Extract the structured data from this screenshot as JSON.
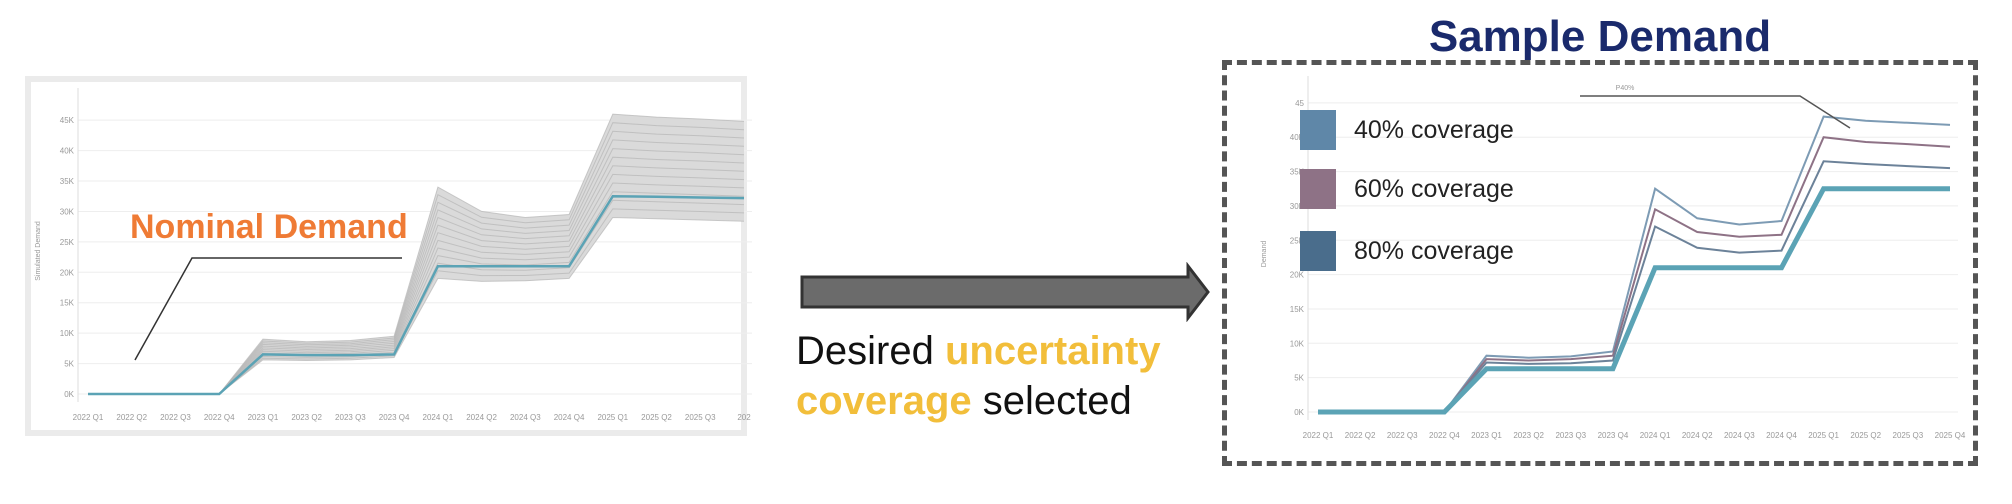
{
  "title": "Sample Demand",
  "nominal_label": "Nominal Demand",
  "caption": {
    "part1": "Desired ",
    "accent1": "uncertainty",
    "accent2": "coverage",
    "part2": " selected"
  },
  "colors": {
    "title": "#1a2a6c",
    "nominal": "#ef7b35",
    "accent": "#f2be3a",
    "teal": "#5ba3b5",
    "grey": "#bcbcbc"
  },
  "legend": [
    {
      "label": "40% coverage",
      "color": "#5f87a8"
    },
    {
      "label": "60% coverage",
      "color": "#8e7286"
    },
    {
      "label": "80% coverage",
      "color": "#4a6d8c"
    }
  ],
  "chart_data": [
    {
      "type": "line",
      "ylabel": "Simulated Demand",
      "ylim": [
        0,
        47000
      ],
      "y_ticks": [
        "0K",
        "5K",
        "10K",
        "15K",
        "20K",
        "25K",
        "30K",
        "35K",
        "40K",
        "45K"
      ],
      "categories": [
        "2022 Q1",
        "2022 Q2",
        "2022 Q3",
        "2022 Q4",
        "2023 Q1",
        "2023 Q2",
        "2023 Q3",
        "2023 Q4",
        "2024 Q1",
        "2024 Q2",
        "2024 Q3",
        "2024 Q4",
        "2025 Q1",
        "2025 Q2",
        "2025 Q3",
        "202"
      ],
      "series": [
        {
          "role": "nominal",
          "values": [
            0,
            0,
            0,
            0,
            6500,
            6400,
            6400,
            6500,
            21000,
            21000,
            21000,
            21000,
            32500,
            32400,
            32300,
            32200
          ]
        },
        {
          "role": "simulation-upper",
          "values": [
            0,
            0,
            0,
            0,
            9000,
            8600,
            8800,
            9500,
            34000,
            30000,
            29000,
            29500,
            46000,
            45500,
            45200,
            44800
          ]
        },
        {
          "role": "simulation-lower",
          "values": [
            0,
            0,
            0,
            0,
            5600,
            5500,
            5600,
            6000,
            19000,
            18500,
            18600,
            19000,
            29000,
            28800,
            28600,
            28400
          ]
        }
      ]
    },
    {
      "type": "line",
      "ylabel": "Demand",
      "ylim": [
        0,
        46000
      ],
      "y_ticks": [
        "0K",
        "5K",
        "10K",
        "15K",
        "20K",
        "25K",
        "30K",
        "35K",
        "40K",
        "45"
      ],
      "categories": [
        "2022 Q1",
        "2022 Q2",
        "2022 Q3",
        "2022 Q4",
        "2023 Q1",
        "2023 Q2",
        "2023 Q3",
        "2023 Q4",
        "2024 Q1",
        "2024 Q2",
        "2024 Q3",
        "2024 Q4",
        "2025 Q1",
        "2025 Q2",
        "2025 Q3",
        "2025 Q4"
      ],
      "annotation": "P40%",
      "series": [
        {
          "name": "40% coverage",
          "values": [
            0,
            0,
            0,
            0,
            8200,
            7900,
            8100,
            8800,
            32500,
            28200,
            27300,
            27800,
            43000,
            42400,
            42100,
            41800
          ]
        },
        {
          "name": "60% coverage",
          "values": [
            0,
            0,
            0,
            0,
            7700,
            7500,
            7700,
            8200,
            29500,
            26200,
            25500,
            25800,
            40000,
            39300,
            39000,
            38600
          ]
        },
        {
          "name": "80% coverage",
          "values": [
            0,
            0,
            0,
            0,
            7200,
            7000,
            7100,
            7500,
            27000,
            23900,
            23200,
            23500,
            36500,
            36100,
            35800,
            35500
          ]
        },
        {
          "role": "nominal",
          "values": [
            0,
            0,
            0,
            0,
            6300,
            6300,
            6300,
            6300,
            21000,
            21000,
            21000,
            21000,
            32500,
            32500,
            32500,
            32500
          ]
        }
      ]
    }
  ]
}
